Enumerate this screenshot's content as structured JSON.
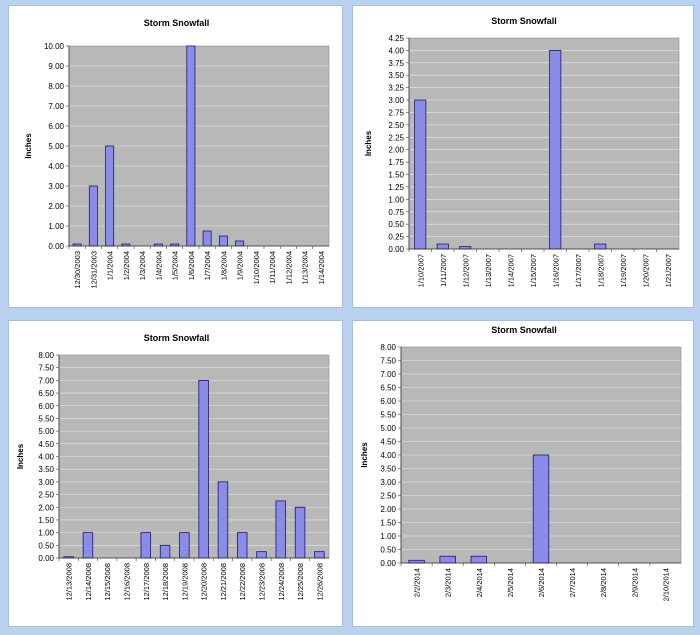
{
  "colors": {
    "plot_bg": "#b8b8b8",
    "bar": "#8b8be8",
    "bar_stroke": "#1a1a6a",
    "grid": "#e6e6e6",
    "frame": "#b9d2ef"
  },
  "chart_data": [
    {
      "type": "bar",
      "title": "Storm Snowfall",
      "ylabel": "Inches",
      "xlabel": "",
      "ylim": [
        0,
        10
      ],
      "ystep": 1,
      "ydec": 2,
      "grid": true,
      "categories": [
        "12/30/2003",
        "12/31/2003",
        "1/1/2004",
        "1/2/2004",
        "1/3/2004",
        "1/4/2004",
        "1/5/2004",
        "1/6/2004",
        "1/7/2004",
        "1/8/2004",
        "1/9/2004",
        "1/10/2004",
        "1/11/2004",
        "1/12/2004",
        "1/13/2004",
        "1/14/2004"
      ],
      "values": [
        0.1,
        3.0,
        5.0,
        0.1,
        0,
        0.1,
        0.1,
        10.0,
        0.75,
        0.5,
        0.25,
        0,
        0,
        0,
        0,
        0
      ]
    },
    {
      "type": "bar",
      "title": "Storm Snowfall",
      "ylabel": "Inches",
      "xlabel": "",
      "ylim": [
        0,
        4.25
      ],
      "ystep": 0.25,
      "ydec": 2,
      "grid": true,
      "categories": [
        "1/10/2007",
        "1/11/2007",
        "1/12/2007",
        "1/13/2007",
        "1/14/2007",
        "1/15/2007",
        "1/16/2007",
        "1/17/2007",
        "1/18/2007",
        "1/19/2007",
        "1/20/2007",
        "1/21/2007"
      ],
      "values": [
        3.0,
        0.1,
        0.05,
        0,
        0,
        0,
        4.0,
        0,
        0.1,
        0,
        0,
        0
      ]
    },
    {
      "type": "bar",
      "title": "Storm Snowfall",
      "ylabel": "Inches",
      "xlabel": "",
      "ylim": [
        0,
        8
      ],
      "ystep": 0.5,
      "ydec": 2,
      "grid": true,
      "categories": [
        "12/13/2008",
        "12/14/2008",
        "12/15/2008",
        "12/16/2008",
        "12/17/2008",
        "12/18/2008",
        "12/19/2008",
        "12/20/2008",
        "12/21/2008",
        "12/22/2008",
        "12/23/2008",
        "12/24/2008",
        "12/25/2008",
        "12/26/2008"
      ],
      "values": [
        0.05,
        1.0,
        0,
        0,
        1.0,
        0.5,
        1.0,
        7.0,
        3.0,
        1.0,
        0.25,
        2.25,
        2.0,
        0.25
      ]
    },
    {
      "type": "bar",
      "title": "Storm Snowfall",
      "ylabel": "Inches",
      "xlabel": "",
      "ylim": [
        0,
        8
      ],
      "ystep": 0.5,
      "ydec": 2,
      "grid": true,
      "categories": [
        "2/2/2014",
        "2/3/2014",
        "2/4/2014",
        "2/5/2014",
        "2/6/2014",
        "2/7/2014",
        "2/8/2014",
        "2/9/2014",
        "2/10/2014"
      ],
      "values": [
        0.1,
        0.25,
        0.25,
        0,
        4.0,
        0,
        0,
        0,
        0
      ]
    }
  ]
}
